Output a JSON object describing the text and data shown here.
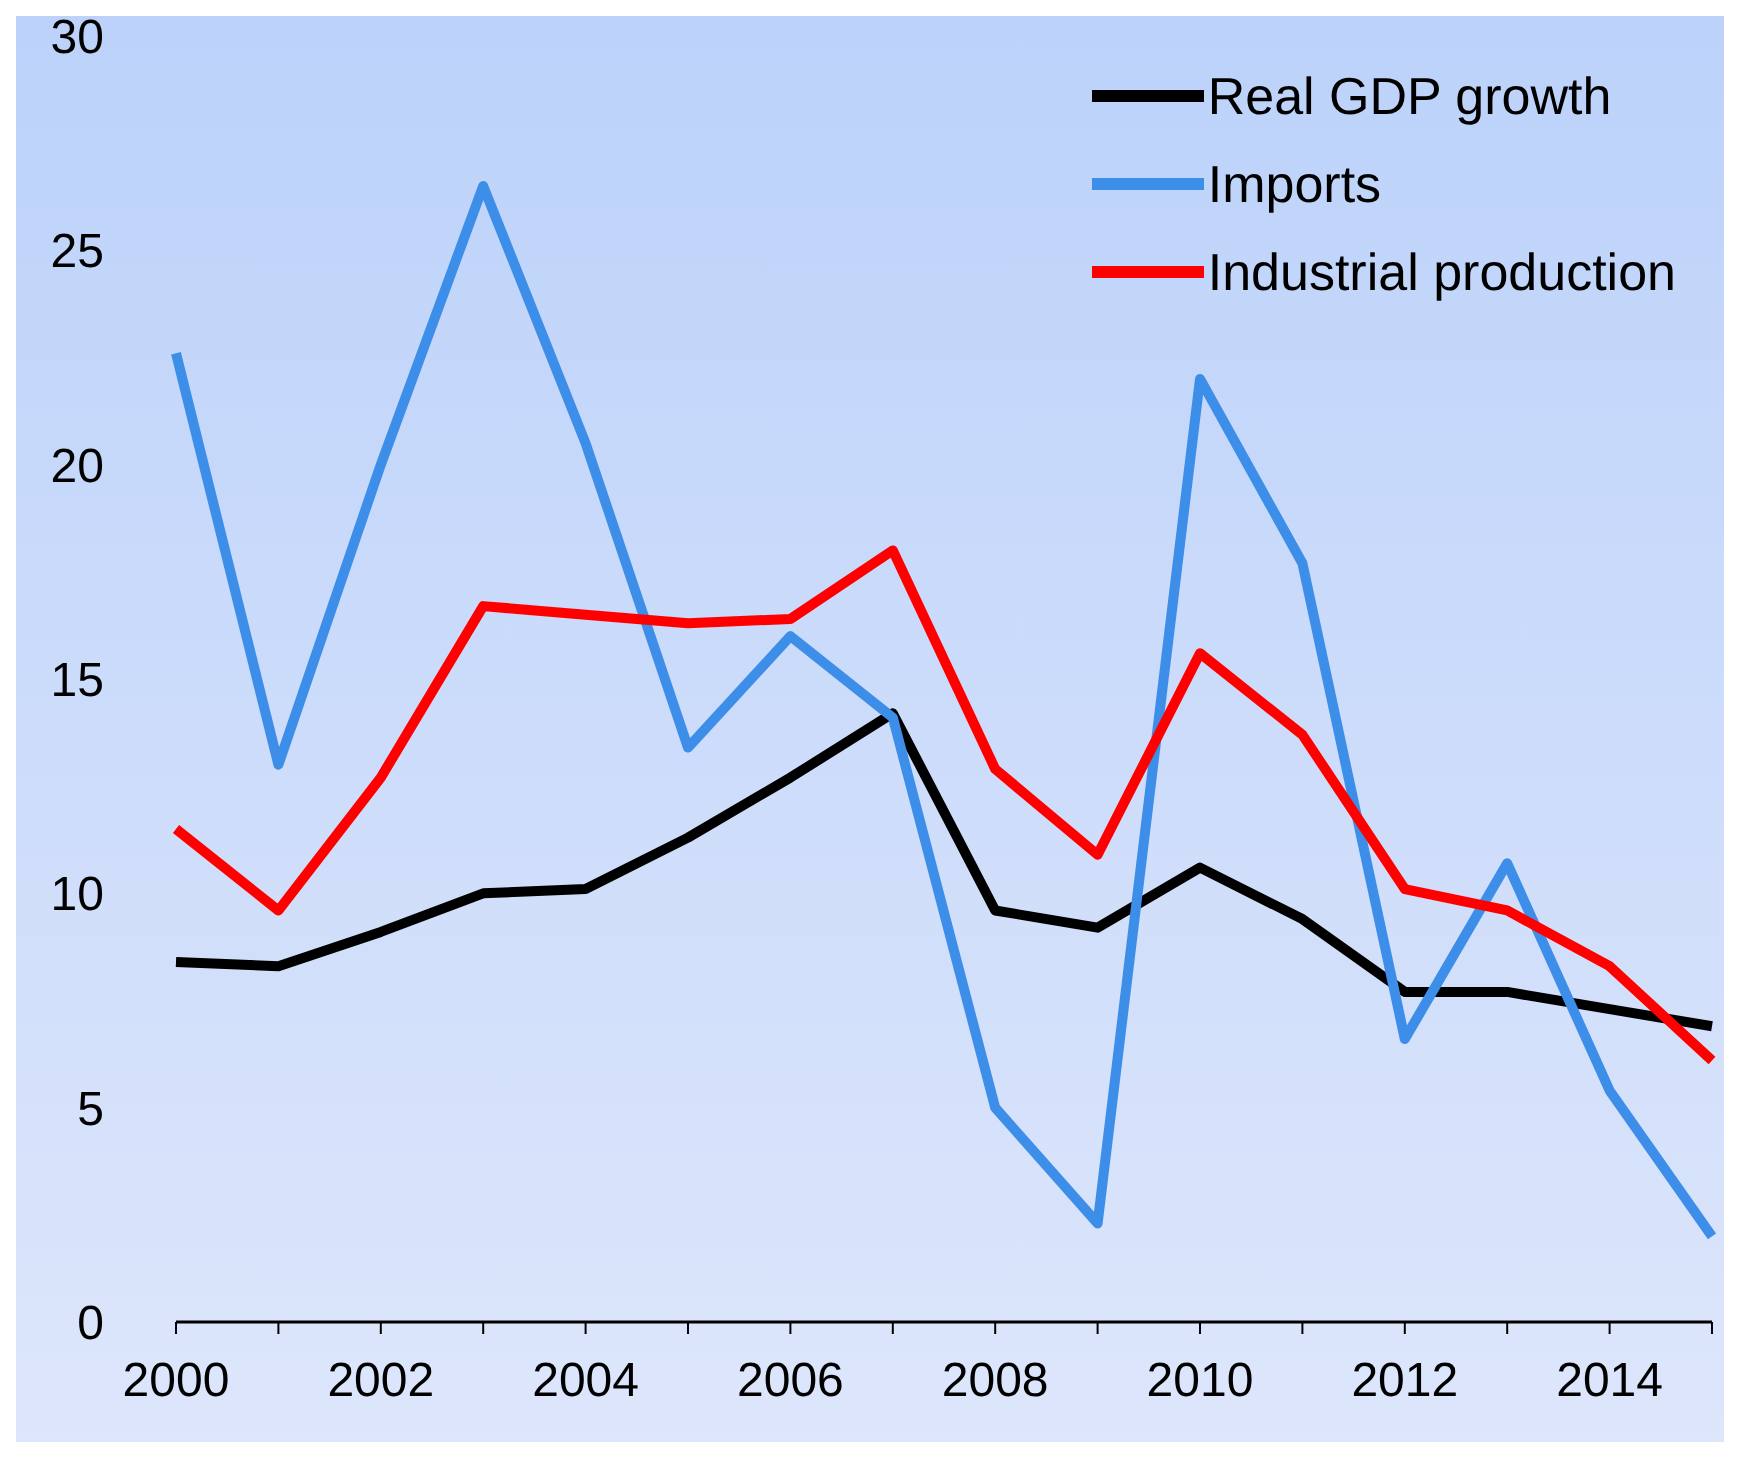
{
  "chart_data": {
    "type": "line",
    "categories": [
      "2000",
      null,
      "2002",
      null,
      "2004",
      null,
      "2006",
      null,
      "2008",
      null,
      "2010",
      null,
      "2012",
      null,
      "2014",
      null
    ],
    "series": [
      {
        "name": "Real GDP growth",
        "color": "#000000",
        "values": [
          8.4,
          8.3,
          9.1,
          10.0,
          10.1,
          11.3,
          12.7,
          14.2,
          9.6,
          9.2,
          10.6,
          9.4,
          7.7,
          7.7,
          7.3,
          6.9
        ]
      },
      {
        "name": "Imports",
        "color": "#3d8ee8",
        "values": [
          22.6,
          13.0,
          20.0,
          26.5,
          20.5,
          13.4,
          16.0,
          14.1,
          5.0,
          2.3,
          22.0,
          17.7,
          6.6,
          10.7,
          5.4,
          2.0
        ]
      },
      {
        "name": "Industrial production",
        "color": "#ff0000",
        "values": [
          11.5,
          9.6,
          12.7,
          16.7,
          16.5,
          16.3,
          16.4,
          18.0,
          12.9,
          10.9,
          15.6,
          13.7,
          10.1,
          9.6,
          8.3,
          6.1
        ]
      }
    ],
    "ylim": [
      0,
      30
    ],
    "yticks": [
      0,
      5,
      10,
      15,
      20,
      25,
      30
    ],
    "grid": false,
    "legend": "top right",
    "marker": "none",
    "line_style": "solid"
  }
}
